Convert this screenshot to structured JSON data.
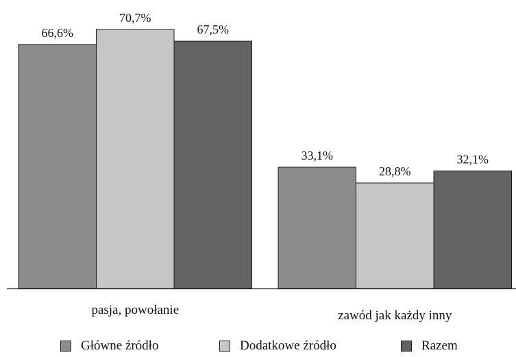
{
  "chart_data": {
    "type": "bar",
    "categories": [
      "pasja, powołanie",
      "zawód jak każdy inny"
    ],
    "series": [
      {
        "name": "Główne źródło",
        "values": [
          66.6,
          33.1
        ],
        "labels": [
          "66,6%",
          "33,1%"
        ],
        "color": "#8c8c8c"
      },
      {
        "name": "Dodatkowe źródło",
        "values": [
          70.7,
          28.8
        ],
        "labels": [
          "70,7%",
          "28,8%"
        ],
        "color": "#c6c6c6"
      },
      {
        "name": "Razem",
        "values": [
          67.5,
          32.1
        ],
        "labels": [
          "67,5%",
          "32,1%"
        ],
        "color": "#636363"
      }
    ],
    "ylim": [
      0,
      70.7
    ],
    "grid": false,
    "legend_position": "bottom",
    "title": "",
    "xlabel": "",
    "ylabel": ""
  }
}
